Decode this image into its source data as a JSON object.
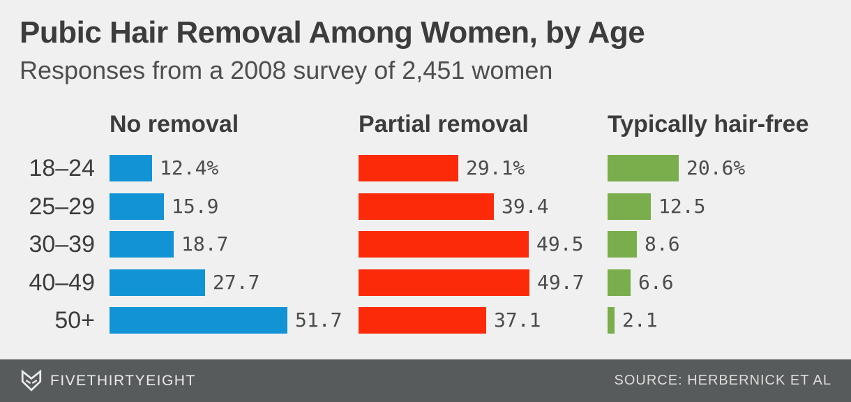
{
  "header": {
    "title": "Pubic Hair Removal Among Women, by Age",
    "subtitle": "Responses from a 2008 survey of 2,451 women"
  },
  "footer": {
    "brand": "FIVETHIRTYEIGHT",
    "logo_icon": "fivethirtyeight-fox-icon",
    "source": "SOURCE: HERBERNICK ET AL"
  },
  "colors": {
    "background": "#f0f0f0",
    "title_text": "#3c3c3c",
    "subtitle_text": "#4e4e4e",
    "value_text": "#4b4b4b",
    "footer_background": "#585b5b",
    "blue": "#1193d6",
    "red": "#fc2a08",
    "green": "#7aad4b"
  },
  "chart_data": {
    "type": "bar",
    "orientation": "horizontal",
    "title": "Pubic Hair Removal Among Women, by Age",
    "subtitle": "Responses from a 2008 survey of 2,451 women",
    "categories": [
      "18–24",
      "25–29",
      "30–39",
      "40–49",
      "50+"
    ],
    "unit": "percent",
    "xlim": [
      0,
      55
    ],
    "grid": false,
    "legend_position": "panel-headers-above-each-small-multiple",
    "series": [
      {
        "name": "No removal",
        "color": "#1193d6",
        "values": [
          12.4,
          15.9,
          18.7,
          27.7,
          51.7
        ],
        "labels": [
          "12.4%",
          "15.9",
          "18.7",
          "27.7",
          "51.7"
        ]
      },
      {
        "name": "Partial removal",
        "color": "#fc2a08",
        "values": [
          29.1,
          39.4,
          49.5,
          49.7,
          37.1
        ],
        "labels": [
          "29.1%",
          "39.4",
          "49.5",
          "49.7",
          "37.1"
        ]
      },
      {
        "name": "Typically hair-free",
        "color": "#7aad4b",
        "values": [
          20.6,
          12.5,
          8.6,
          6.6,
          2.1
        ],
        "labels": [
          "20.6%",
          "12.5",
          "8.6",
          "6.6",
          "2.1"
        ]
      }
    ]
  }
}
